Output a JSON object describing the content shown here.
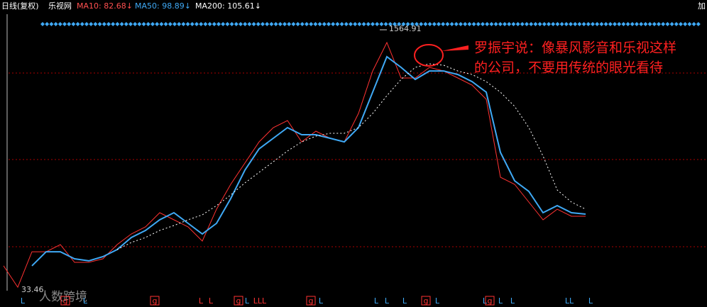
{
  "chart_data": {
    "type": "line",
    "header": [
      "日线(复权)",
      "乐视网",
      "MA10: 82.68↓",
      "MA50: 98.89↓",
      "MA200: 105.61↓",
      "加"
    ],
    "header_colors": [
      "#ffffff",
      "#ffffff",
      "#ff5050",
      "#3fa9f5",
      "#ffffff",
      "#ffffff"
    ],
    "annotations": {
      "high": "1564.91",
      "low": "33.46",
      "note_line1": "罗振宇说：像暴风影音和乐视这样",
      "note_line2": "的公司，不要用传统的眼光看待",
      "watermark": "人数跨境"
    },
    "log_scale": true,
    "ylim": [
      31,
      1700
    ],
    "series": [
      {
        "color": "#ff3232",
        "dash": false,
        "values": [
          47.3,
          34.4,
          58.3,
          58.3,
          64.8,
          49.8,
          49.8,
          52.5,
          64.8,
          75.9,
          84.4,
          104.2,
          93.7,
          84.4,
          68.3,
          109.7,
          158.7,
          217.7,
          298.6,
          368.8,
          409.8,
          298.6,
          350.0,
          314.8,
          298.6,
          455.4,
          856.5,
          1306.7,
          771.3,
          771.3,
          903.0,
          856.5,
          771.3,
          693.8,
          562.3,
          176.4,
          158.7,
          122.0,
          93.7,
          109.7,
          98.8,
          98.8
        ]
      },
      {
        "color": "#3fa9f5",
        "dash": false,
        "values": [
          null,
          null,
          47.3,
          58.3,
          58.3,
          52.5,
          50.9,
          54.2,
          60.2,
          72.0,
          80.0,
          93.7,
          104.2,
          88.9,
          75.9,
          88.9,
          128.5,
          196.0,
          268.8,
          314.8,
          368.8,
          331.9,
          331.9,
          314.8,
          298.6,
          368.8,
          624.6,
          1057.7,
          903.0,
          755.2,
          856.5,
          856.5,
          812.5,
          731.3,
          624.6,
          255.0,
          167.3,
          142.9,
          104.2,
          115.7,
          104.2,
          102.0
        ]
      },
      {
        "color": "#ffffff",
        "dash": true,
        "values": [
          null,
          null,
          null,
          null,
          null,
          null,
          null,
          null,
          60.2,
          66.9,
          72.0,
          80.0,
          86.1,
          93.7,
          100.9,
          115.7,
          135.5,
          162.1,
          189.8,
          222.3,
          260.4,
          298.6,
          324.9,
          339.0,
          339.0,
          368.8,
          455.4,
          592.4,
          755.2,
          903.0,
          952.3,
          932.5,
          856.5,
          812.5,
          731.3,
          624.6,
          505.9,
          368.8,
          242.0,
          145.9,
          122.0,
          109.7
        ]
      }
    ],
    "signals": [
      "L",
      "g",
      "L",
      "g",
      "L",
      "L",
      "g",
      "L",
      "LLL",
      "g",
      "L",
      "L",
      "L",
      "L",
      "g",
      "L",
      "L",
      "g",
      "L",
      "L",
      "LL",
      "L"
    ]
  }
}
